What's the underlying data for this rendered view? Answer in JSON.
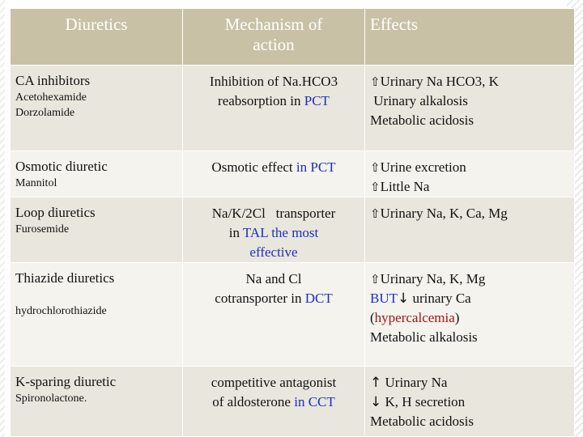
{
  "header": {
    "col1": "Diuretics",
    "col2_line1": "Mechanism of",
    "col2_line2": "action",
    "col3": "Effects"
  },
  "rows": [
    {
      "drug_class": "CA inhibitors",
      "examples": [
        "Acetohexamide",
        "Dorzolamide"
      ],
      "mech_line1": "Inhibition of Na.HCO3",
      "mech_line2_a": "reabsorption  in ",
      "mech_line2_b": "PCT",
      "effects": [
        "Urinary Na HCO3, K",
        "Urinary alkalosis",
        "Metabolic acidosis"
      ]
    },
    {
      "drug_class": "Osmotic diuretic",
      "examples": [
        "Mannitol"
      ],
      "mech_a": "Osmotic effect ",
      "mech_b": "in PCT",
      "effects": [
        "Urine excretion",
        "Little Na"
      ]
    },
    {
      "drug_class": "Loop diuretics",
      "examples": [
        "Furosemide"
      ],
      "mech_line1": "Na/K/2Cl   transporter",
      "mech_line2_a": "in ",
      "mech_line2_b": "TAL the most",
      "mech_line3": "effective",
      "effects": [
        "Urinary Na, K, Ca, Mg"
      ]
    },
    {
      "drug_class": "Thiazide diuretics",
      "examples": [
        "hydrochlorothiazide"
      ],
      "mech_line1": "Na and Cl",
      "mech_line2_a": "cotransporter in ",
      "mech_line2_b": "DCT",
      "effect1": "Urinary Na, K, Mg",
      "effect2_a": "BUT",
      "effect2_arrow": "↓",
      "effect2_b": " urinary Ca",
      "effect3_open": "(",
      "effect3_red": "hypercalcemia",
      "effect3_close": ")",
      "effect4": "Metabolic alkalosis"
    },
    {
      "drug_class": "K-sparing diuretic",
      "examples": [
        "Spironolactone."
      ],
      "mech_line1": "competitive antagonist",
      "mech_line2_a": "of aldosterone ",
      "mech_line2_b": "in CCT",
      "effect1_arrow": "↑",
      "effect1": " Urinary Na",
      "effect2_arrow": "↓",
      "effect2": " K, H secretion",
      "effect3": "Metabolic acidosis"
    }
  ],
  "icons": {
    "up": "up-arrow-icon",
    "down": "down-arrow-icon"
  },
  "colors": {
    "header_bg": "#c9c1a5",
    "row_odd": "#e9e6dd",
    "row_even": "#f4f3ee",
    "blue_text": "#1b2fbf",
    "red_text": "#a01515"
  }
}
